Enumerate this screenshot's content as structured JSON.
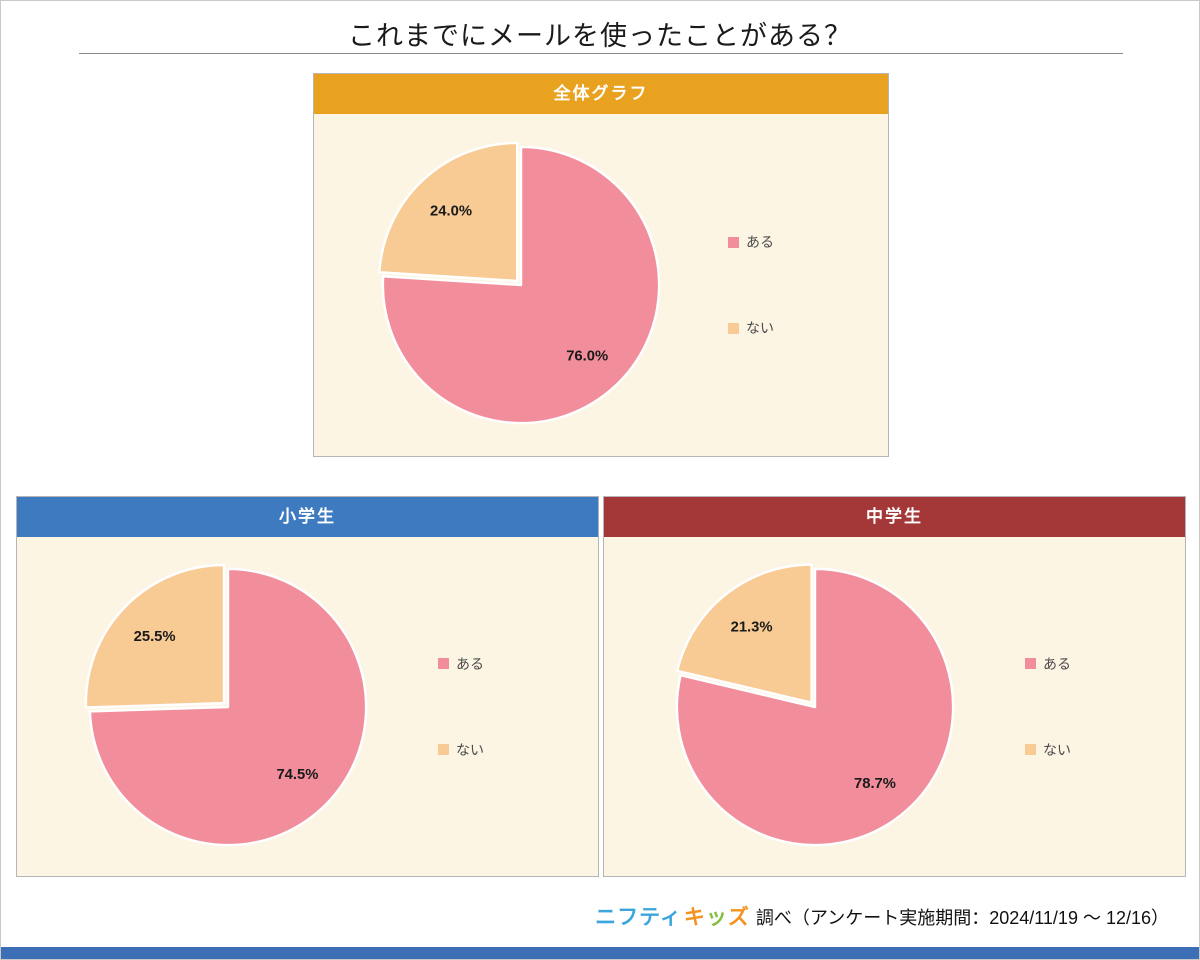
{
  "page": {
    "title": "これまでにメールを使ったことがある？",
    "colors": {
      "panel_bg": "#fcf5e4",
      "bottom_bar": "#3c6fb5",
      "aru": "#f28e9b",
      "nai": "#f8ca94"
    },
    "footer": {
      "brand_chars": [
        {
          "ch": "ニフティ",
          "color": "#3ba5dc"
        },
        {
          "ch": "キ",
          "color": "#f5911e"
        },
        {
          "ch": "ッ",
          "color": "#85be3e"
        },
        {
          "ch": "ズ",
          "color": "#f5911e"
        }
      ],
      "suffix": "調べ（アンケート実施期間：2024/11/19 ～ 12/16）"
    }
  },
  "chart_data": [
    {
      "type": "pie",
      "title": "全体グラフ",
      "header_color": "#e8a21f",
      "labels": [
        "ある",
        "ない"
      ],
      "values": [
        76.0,
        24.0
      ],
      "value_labels": [
        "76.0%",
        "24.0%"
      ],
      "colors": [
        "#f28e9b",
        "#f8ca94"
      ],
      "start_angle": 0,
      "direction": "clockwise",
      "explode": [
        0,
        0.04
      ],
      "legend_position": "right",
      "background": "#fcf5e4"
    },
    {
      "type": "pie",
      "title": "小学生",
      "header_color": "#3d7ac0",
      "labels": [
        "ある",
        "ない"
      ],
      "values": [
        74.5,
        25.5
      ],
      "value_labels": [
        "74.5%",
        "25.5%"
      ],
      "colors": [
        "#f28e9b",
        "#f8ca94"
      ],
      "start_angle": 0,
      "direction": "clockwise",
      "explode": [
        0,
        0.04
      ],
      "legend_position": "right",
      "background": "#fcf5e4"
    },
    {
      "type": "pie",
      "title": "中学生",
      "header_color": "#a43838",
      "labels": [
        "ある",
        "ない"
      ],
      "values": [
        78.7,
        21.3
      ],
      "value_labels": [
        "78.7%",
        "21.3%"
      ],
      "colors": [
        "#f28e9b",
        "#f8ca94"
      ],
      "start_angle": 0,
      "direction": "clockwise",
      "explode": [
        0,
        0.04
      ],
      "legend_position": "right",
      "background": "#fcf5e4"
    }
  ]
}
